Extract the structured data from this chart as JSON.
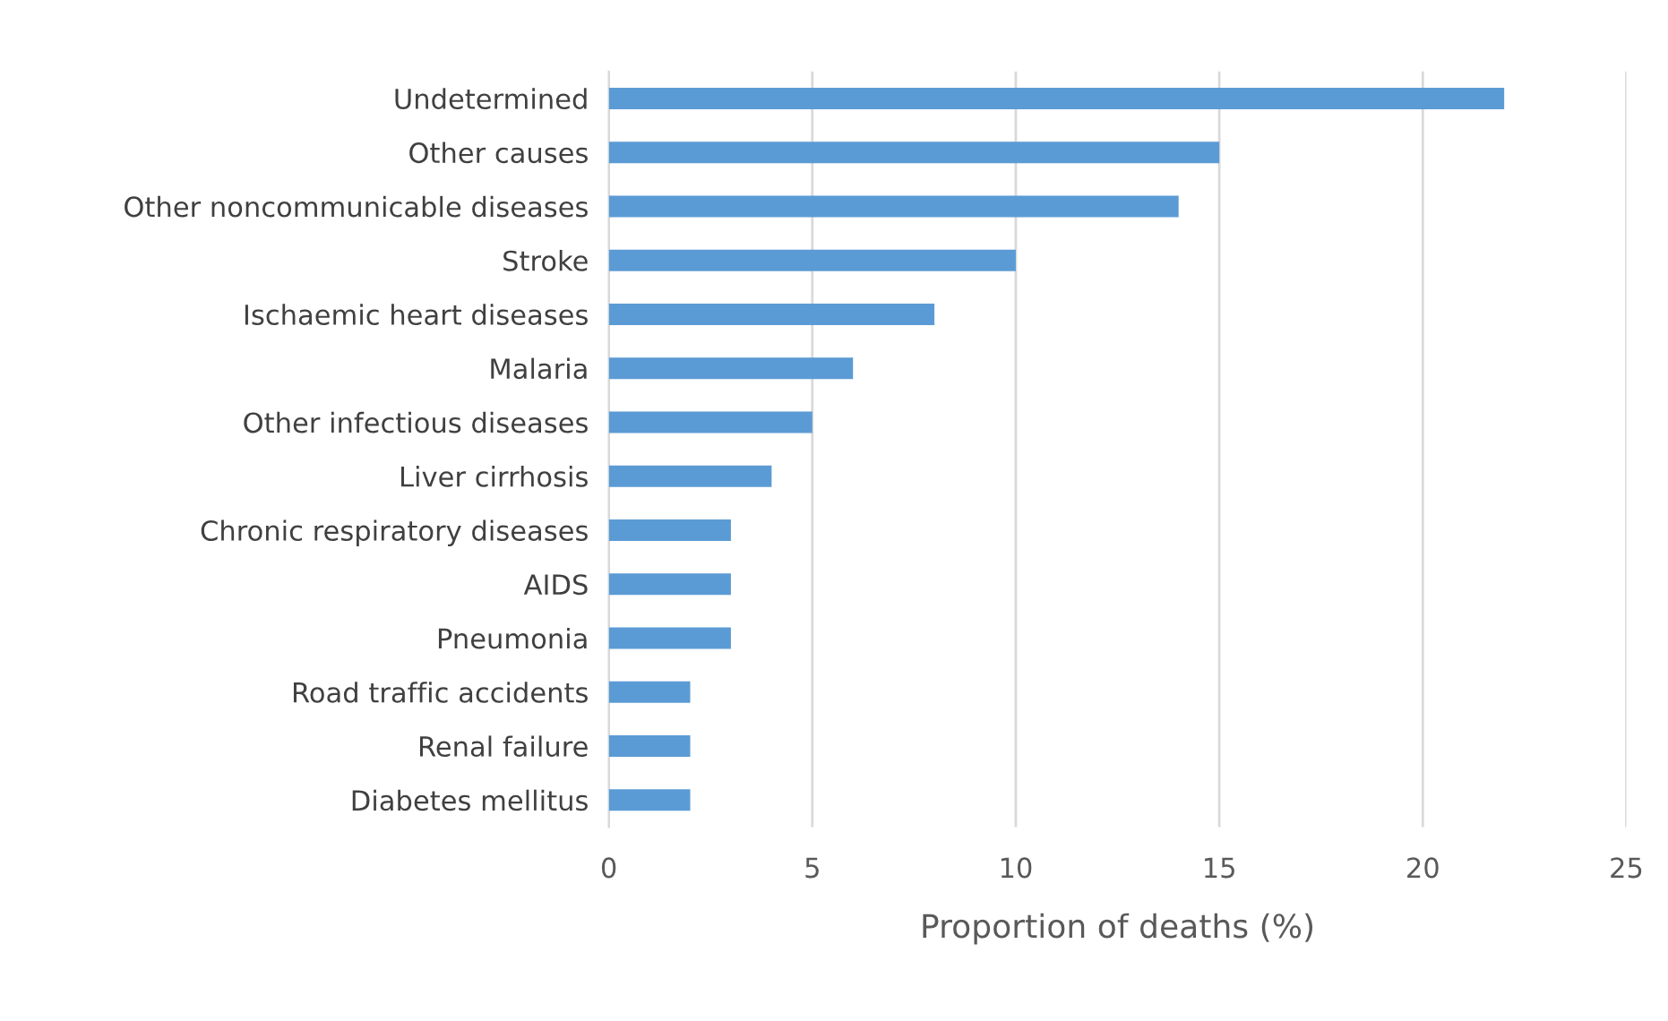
{
  "chart_data": {
    "type": "bar",
    "orientation": "horizontal",
    "xlabel": "Proportion of deaths (%)",
    "categories": [
      "Undetermined",
      "Other causes",
      "Other noncommunicable diseases",
      "Stroke",
      "Ischaemic heart diseases",
      "Malaria",
      "Other infectious diseases",
      "Liver cirrhosis",
      "Chronic respiratory diseases",
      "AIDS",
      "Pneumonia",
      "Road traffic accidents",
      "Renal failure",
      "Diabetes mellitus"
    ],
    "values": [
      22,
      15,
      14,
      10,
      8,
      6,
      5,
      4,
      3,
      3,
      3,
      2,
      2,
      2
    ],
    "color": "#5b9bd5",
    "xlim": [
      0,
      25
    ],
    "xticks": [
      0,
      5,
      10,
      15,
      20,
      25
    ],
    "grid": "x",
    "legend": false
  }
}
